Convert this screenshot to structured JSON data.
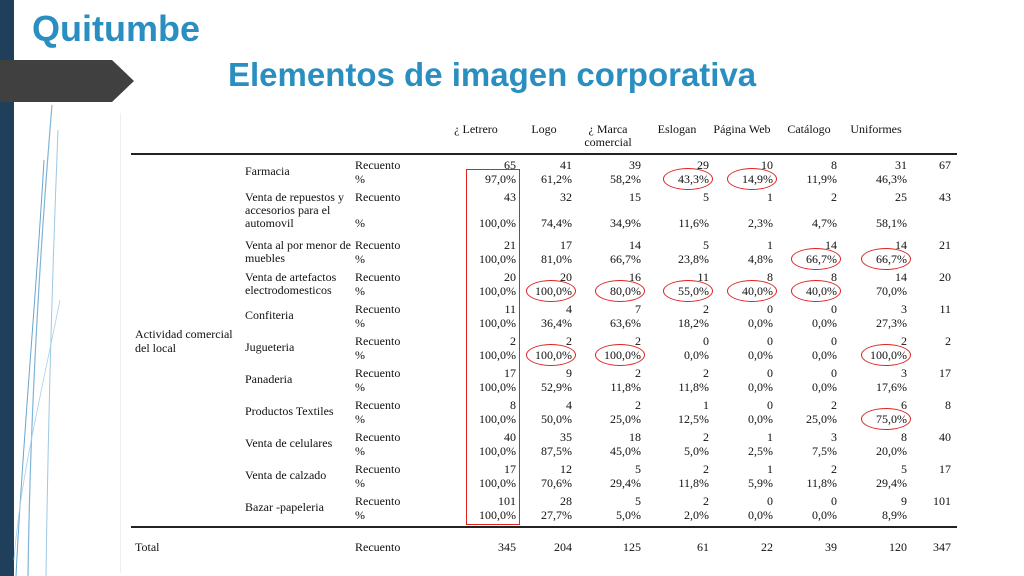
{
  "title": "Quitumbe",
  "subtitle": "Elementos de imagen corporativa",
  "table": {
    "columns": [
      "¿ Letrero",
      "Logo",
      "¿ Marca comercial",
      "Eslogan",
      "Página Web",
      "Catálogo",
      "Uniformes",
      ""
    ],
    "group_label": "Actividad comercial del  local",
    "rows": [
      {
        "category": "Farmacia",
        "recuento": [
          "65",
          "41",
          "39",
          "29",
          "10",
          "8",
          "31",
          "67"
        ],
        "pct": [
          "97,0%",
          "61,2%",
          "58,2%",
          "43,3%",
          "14,9%",
          "11,9%",
          "46,3%"
        ]
      },
      {
        "category": "Venta de repuestos y accesorios para el automovil",
        "recuento": [
          "43",
          "32",
          "15",
          "5",
          "1",
          "2",
          "25",
          "43"
        ],
        "pct": [
          "100,0%",
          "74,4%",
          "34,9%",
          "11,6%",
          "2,3%",
          "4,7%",
          "58,1%"
        ]
      },
      {
        "category": "Venta al por menor de muebles",
        "recuento": [
          "21",
          "17",
          "14",
          "5",
          "1",
          "14",
          "14",
          "21"
        ],
        "pct": [
          "100,0%",
          "81,0%",
          "66,7%",
          "23,8%",
          "4,8%",
          "66,7%",
          "66,7%"
        ]
      },
      {
        "category": "Venta  de artefactos electrodomesticos",
        "recuento": [
          "20",
          "20",
          "16",
          "11",
          "8",
          "8",
          "14",
          "20"
        ],
        "pct": [
          "100,0%",
          "100,0%",
          "80,0%",
          "55,0%",
          "40,0%",
          "40,0%",
          "70,0%"
        ]
      },
      {
        "category": "Confiteria",
        "recuento": [
          "11",
          "4",
          "7",
          "2",
          "0",
          "0",
          "3",
          "11"
        ],
        "pct": [
          "100,0%",
          "36,4%",
          "63,6%",
          "18,2%",
          "0,0%",
          "0,0%",
          "27,3%"
        ]
      },
      {
        "category": "Jugueteria",
        "recuento": [
          "2",
          "2",
          "2",
          "0",
          "0",
          "0",
          "2",
          "2"
        ],
        "pct": [
          "100,0%",
          "100,0%",
          "100,0%",
          "0,0%",
          "0,0%",
          "0,0%",
          "100,0%"
        ]
      },
      {
        "category": "Panaderia",
        "recuento": [
          "17",
          "9",
          "2",
          "2",
          "0",
          "0",
          "3",
          "17"
        ],
        "pct": [
          "100,0%",
          "52,9%",
          "11,8%",
          "11,8%",
          "0,0%",
          "0,0%",
          "17,6%"
        ]
      },
      {
        "category": "Productos Textiles",
        "recuento": [
          "8",
          "4",
          "2",
          "1",
          "0",
          "2",
          "6",
          "8"
        ],
        "pct": [
          "100,0%",
          "50,0%",
          "25,0%",
          "12,5%",
          "0,0%",
          "25,0%",
          "75,0%"
        ]
      },
      {
        "category": "Venta de celulares",
        "recuento": [
          "40",
          "35",
          "18",
          "2",
          "1",
          "3",
          "8",
          "40"
        ],
        "pct": [
          "100,0%",
          "87,5%",
          "45,0%",
          "5,0%",
          "2,5%",
          "7,5%",
          "20,0%"
        ]
      },
      {
        "category": "Venta de calzado",
        "recuento": [
          "17",
          "12",
          "5",
          "2",
          "1",
          "2",
          "5",
          "17"
        ],
        "pct": [
          "100,0%",
          "70,6%",
          "29,4%",
          "11,8%",
          "5,9%",
          "11,8%",
          "29,4%"
        ]
      },
      {
        "category": "Bazar -papeleria",
        "recuento": [
          "101",
          "28",
          "5",
          "2",
          "0",
          "0",
          "9",
          "101"
        ],
        "pct": [
          "100,0%",
          "27,7%",
          "5,0%",
          "2,0%",
          "0,0%",
          "0,0%",
          "8,9%"
        ]
      }
    ],
    "recuento_label": "Recuento",
    "pct_label": "%",
    "total": {
      "label": "Total",
      "kind": "Recuento",
      "values": [
        "345",
        "204",
        "125",
        "61",
        "22",
        "39",
        "120",
        "347"
      ]
    },
    "highlighted_cells": [
      {
        "row": 0,
        "col": 3
      },
      {
        "row": 0,
        "col": 4
      },
      {
        "row": 2,
        "col": 5
      },
      {
        "row": 2,
        "col": 6
      },
      {
        "row": 3,
        "col": 1
      },
      {
        "row": 3,
        "col": 2
      },
      {
        "row": 3,
        "col": 3
      },
      {
        "row": 3,
        "col": 4
      },
      {
        "row": 3,
        "col": 5
      },
      {
        "row": 5,
        "col": 1
      },
      {
        "row": 5,
        "col": 2
      },
      {
        "row": 5,
        "col": 6
      },
      {
        "row": 7,
        "col": 6
      }
    ]
  },
  "colors": {
    "accent": "#2a8fc0",
    "sidebar": "#1f3f5a",
    "highlight": "#d22222"
  }
}
